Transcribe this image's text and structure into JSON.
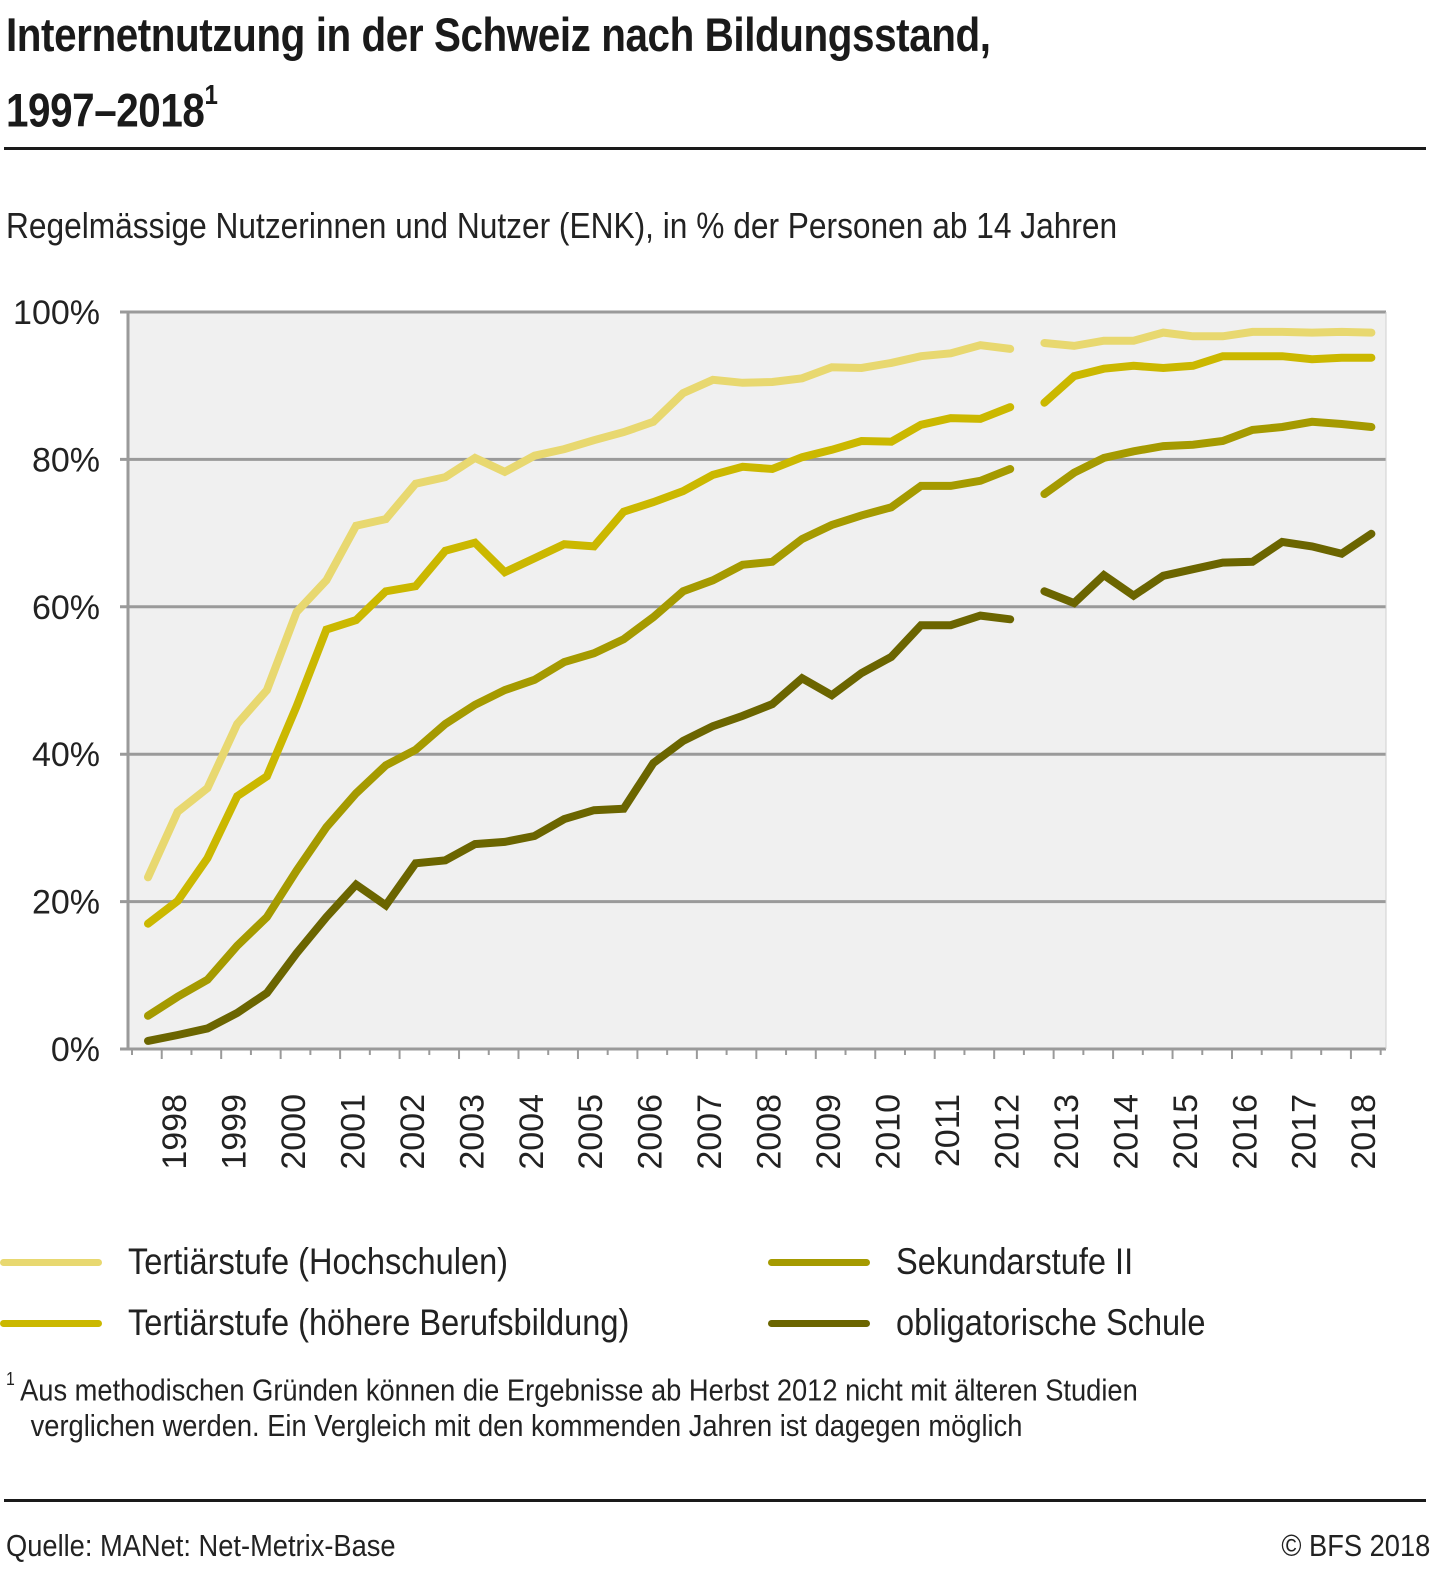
{
  "header": {
    "title_line1": "Internetnutzung in der Schweiz nach Bildungsstand,",
    "title_line2": "1997–2018",
    "title_footnote_mark": "1",
    "subtitle": "Regelmässige Nutzerinnen und Nutzer (ENK), in % der Personen ab 14 Jahren"
  },
  "footnote": {
    "mark": "1",
    "line1": "Aus methodischen Gründen können die Ergebnisse ab Herbst 2012 nicht mit älteren Studien",
    "line2": "verglichen werden. Ein Vergleich mit den kommenden Jahren ist dagegen möglich"
  },
  "source": "Quelle: MANet: Net-Metrix-Base",
  "copyright": "© BFS 2018",
  "chart_data": {
    "type": "line",
    "title": "Internetnutzung in der Schweiz nach Bildungsstand, 1997–2018",
    "subtitle": "Regelmässige Nutzerinnen und Nutzer (ENK), in % der Personen ab 14 Jahren",
    "xlabel": "",
    "ylabel": "",
    "ylim": [
      0,
      100
    ],
    "yticks": [
      0,
      20,
      40,
      60,
      80,
      100
    ],
    "ytick_labels": [
      "0%",
      "20%",
      "40%",
      "60%",
      "80%",
      "100%"
    ],
    "xtick_labels": [
      "1998",
      "1999",
      "2000",
      "2001",
      "2002",
      "2003",
      "2004",
      "2005",
      "2006",
      "2007",
      "2008",
      "2009",
      "2010",
      "2011",
      "2012",
      "2013",
      "2014",
      "2015",
      "2016",
      "2017",
      "2018"
    ],
    "grid": true,
    "legend_position": "bottom",
    "break_note": "Series break after spring 2012 (methodological change, autumn 2012)",
    "periods_before_break": [
      "1997-2",
      "1998-1",
      "1998-2",
      "1999-1",
      "1999-2",
      "2000-1",
      "2000-2",
      "2001-1",
      "2001-2",
      "2002-1",
      "2002-2",
      "2003-1",
      "2003-2",
      "2004-1",
      "2004-2",
      "2005-1",
      "2005-2",
      "2006-1",
      "2006-2",
      "2007-1",
      "2007-2",
      "2008-1",
      "2008-2",
      "2009-1",
      "2009-2",
      "2010-1",
      "2010-2",
      "2011-1",
      "2011-2",
      "2012-1"
    ],
    "periods_after_break": [
      "2012-2",
      "2013-1",
      "2013-2",
      "2014-1",
      "2014-2",
      "2015-1",
      "2015-2",
      "2016-1",
      "2016-2",
      "2017-1",
      "2017-2",
      "2018-1"
    ],
    "series": [
      {
        "name": "Tertiärstufe (Hochschulen)",
        "color": "#e8d870",
        "values_before_break": [
          23.3,
          32.2,
          35.4,
          44.1,
          48.7,
          59.3,
          63.6,
          71.0,
          71.9,
          76.7,
          77.6,
          80.2,
          78.3,
          80.5,
          81.4,
          82.6,
          83.7,
          85.1,
          89.0,
          90.8,
          90.4,
          90.5,
          91.0,
          92.5,
          92.4,
          93.1,
          94.0,
          94.4,
          95.5,
          95.0
        ],
        "values_after_break": [
          95.8,
          95.4,
          96.1,
          96.1,
          97.2,
          96.7,
          96.7,
          97.3,
          97.3,
          97.2,
          97.3,
          97.2
        ]
      },
      {
        "name": "Tertiärstufe (höhere Berufsbildung)",
        "color": "#cbb800",
        "values_before_break": [
          17.0,
          20.1,
          25.9,
          34.3,
          37.0,
          46.5,
          56.9,
          58.2,
          62.1,
          62.8,
          67.6,
          68.7,
          64.7,
          66.6,
          68.5,
          68.2,
          72.9,
          74.2,
          75.7,
          77.9,
          79.0,
          78.7,
          80.3,
          81.3,
          82.5,
          82.4,
          84.7,
          85.6,
          85.5,
          87.1
        ],
        "values_after_break": [
          87.7,
          91.3,
          92.3,
          92.7,
          92.4,
          92.7,
          94.0,
          94.0,
          94.0,
          93.6,
          93.8,
          93.8
        ]
      },
      {
        "name": "Sekundarstufe II",
        "color": "#a59a00",
        "values_before_break": [
          4.5,
          7.1,
          9.4,
          14.0,
          17.9,
          24.2,
          30.1,
          34.7,
          38.5,
          40.6,
          44.1,
          46.7,
          48.7,
          50.1,
          52.5,
          53.7,
          55.6,
          58.6,
          62.1,
          63.6,
          65.7,
          66.1,
          69.2,
          71.1,
          72.4,
          73.5,
          76.4,
          76.4,
          77.1,
          78.7
        ],
        "values_after_break": [
          75.3,
          78.2,
          80.2,
          81.1,
          81.8,
          82.0,
          82.5,
          84.0,
          84.4,
          85.1,
          84.8,
          84.4
        ]
      },
      {
        "name": "obligatorische Schule",
        "color": "#6b6500",
        "values_before_break": [
          1.1,
          1.9,
          2.8,
          4.9,
          7.6,
          13.0,
          17.9,
          22.3,
          19.5,
          25.2,
          25.6,
          27.8,
          28.1,
          28.9,
          31.2,
          32.4,
          32.6,
          38.8,
          41.8,
          43.8,
          45.2,
          46.8,
          50.3,
          48.0,
          51.0,
          53.2,
          57.5,
          57.5,
          58.8,
          58.3
        ],
        "values_after_break": [
          62.1,
          60.5,
          64.3,
          61.5,
          64.2,
          65.1,
          66.0,
          66.1,
          68.8,
          68.2,
          67.2,
          69.9
        ]
      }
    ]
  },
  "colors": {
    "plot_background": "#f0f0f0",
    "grid": "#9a9a9a",
    "text": "#1a1a1a"
  }
}
